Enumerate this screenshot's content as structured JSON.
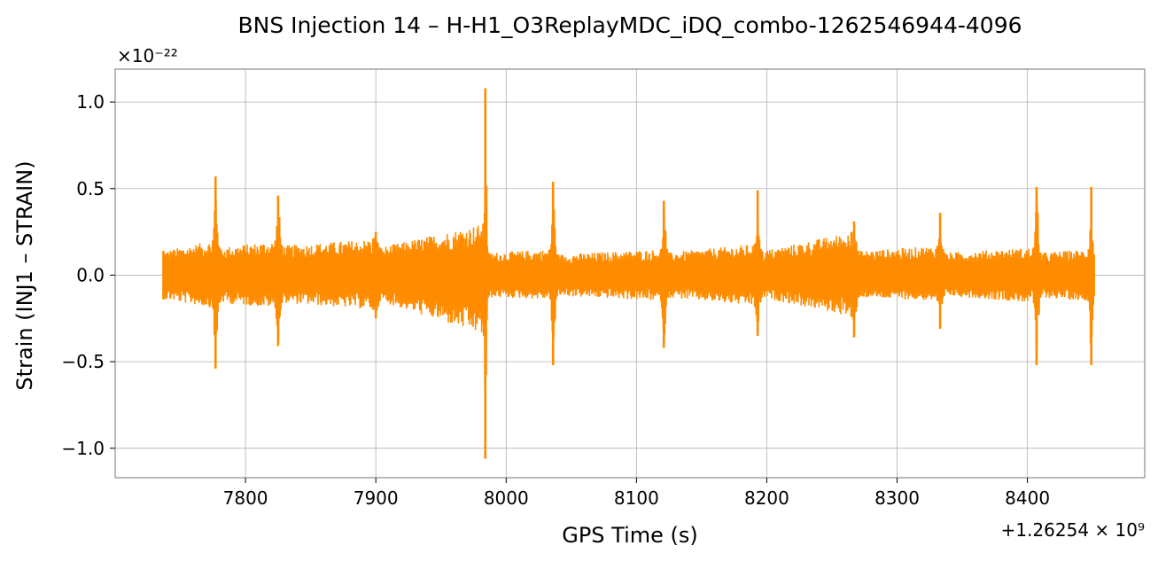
{
  "chart_data": {
    "type": "line",
    "title": "BNS Injection 14 – H-H1_O3ReplayMDC_iDQ_combo-1262546944-4096",
    "xlabel": "GPS Time (s)",
    "ylabel": "Strain (INJ1 – STRAIN)",
    "x_offset_label": "+1.26254 × 10⁹",
    "y_scale_label": "×10⁻²²",
    "xlim": [
      7700,
      8490
    ],
    "ylim": [
      -1.17,
      1.19
    ],
    "xticks": [
      7800,
      7900,
      8000,
      8100,
      8200,
      8300,
      8400
    ],
    "xtick_labels": [
      "7800",
      "7900",
      "8000",
      "8100",
      "8200",
      "8300",
      "8400"
    ],
    "yticks": [
      -1.0,
      -0.5,
      0.0,
      0.5,
      1.0
    ],
    "ytick_labels": [
      "−1.0",
      "−0.5",
      "0.0",
      "0.5",
      "1.0"
    ],
    "grid": true,
    "color": "#ff8c00",
    "series": [
      {
        "x_range": [
          7737,
          8451
        ],
        "envelope": [
          {
            "x": 7737,
            "max": 0.14,
            "min": -0.14
          },
          {
            "x": 7775,
            "max": 0.2,
            "min": -0.19
          },
          {
            "x": 7777,
            "max": 0.57,
            "min": -0.54
          },
          {
            "x": 7780,
            "max": 0.16,
            "min": -0.16
          },
          {
            "x": 7823,
            "max": 0.2,
            "min": -0.19
          },
          {
            "x": 7825,
            "max": 0.46,
            "min": -0.41
          },
          {
            "x": 7828,
            "max": 0.17,
            "min": -0.16
          },
          {
            "x": 7898,
            "max": 0.21,
            "min": -0.2
          },
          {
            "x": 7900,
            "max": 0.25,
            "min": -0.25
          },
          {
            "x": 7903,
            "max": 0.16,
            "min": -0.15
          },
          {
            "x": 7983,
            "max": 0.3,
            "min": -0.35
          },
          {
            "x": 7984,
            "max": 1.08,
            "min": -1.06
          },
          {
            "x": 7986,
            "max": 0.13,
            "min": -0.13
          },
          {
            "x": 8034,
            "max": 0.15,
            "min": -0.14
          },
          {
            "x": 8036,
            "max": 0.54,
            "min": -0.52
          },
          {
            "x": 8039,
            "max": 0.12,
            "min": -0.12
          },
          {
            "x": 8119,
            "max": 0.15,
            "min": -0.15
          },
          {
            "x": 8121,
            "max": 0.43,
            "min": -0.42
          },
          {
            "x": 8124,
            "max": 0.13,
            "min": -0.13
          },
          {
            "x": 8191,
            "max": 0.18,
            "min": -0.18
          },
          {
            "x": 8193,
            "max": 0.49,
            "min": -0.35
          },
          {
            "x": 8196,
            "max": 0.14,
            "min": -0.13
          },
          {
            "x": 8265,
            "max": 0.25,
            "min": -0.24
          },
          {
            "x": 8267,
            "max": 0.31,
            "min": -0.36
          },
          {
            "x": 8270,
            "max": 0.14,
            "min": -0.13
          },
          {
            "x": 8331,
            "max": 0.17,
            "min": -0.15
          },
          {
            "x": 8333,
            "max": 0.36,
            "min": -0.31
          },
          {
            "x": 8336,
            "max": 0.13,
            "min": -0.12
          },
          {
            "x": 8405,
            "max": 0.16,
            "min": -0.16
          },
          {
            "x": 8407,
            "max": 0.51,
            "min": -0.52
          },
          {
            "x": 8410,
            "max": 0.13,
            "min": -0.13
          },
          {
            "x": 8447,
            "max": 0.15,
            "min": -0.15
          },
          {
            "x": 8449,
            "max": 0.51,
            "min": -0.52
          },
          {
            "x": 8451,
            "max": 0.12,
            "min": -0.12
          }
        ]
      }
    ]
  }
}
